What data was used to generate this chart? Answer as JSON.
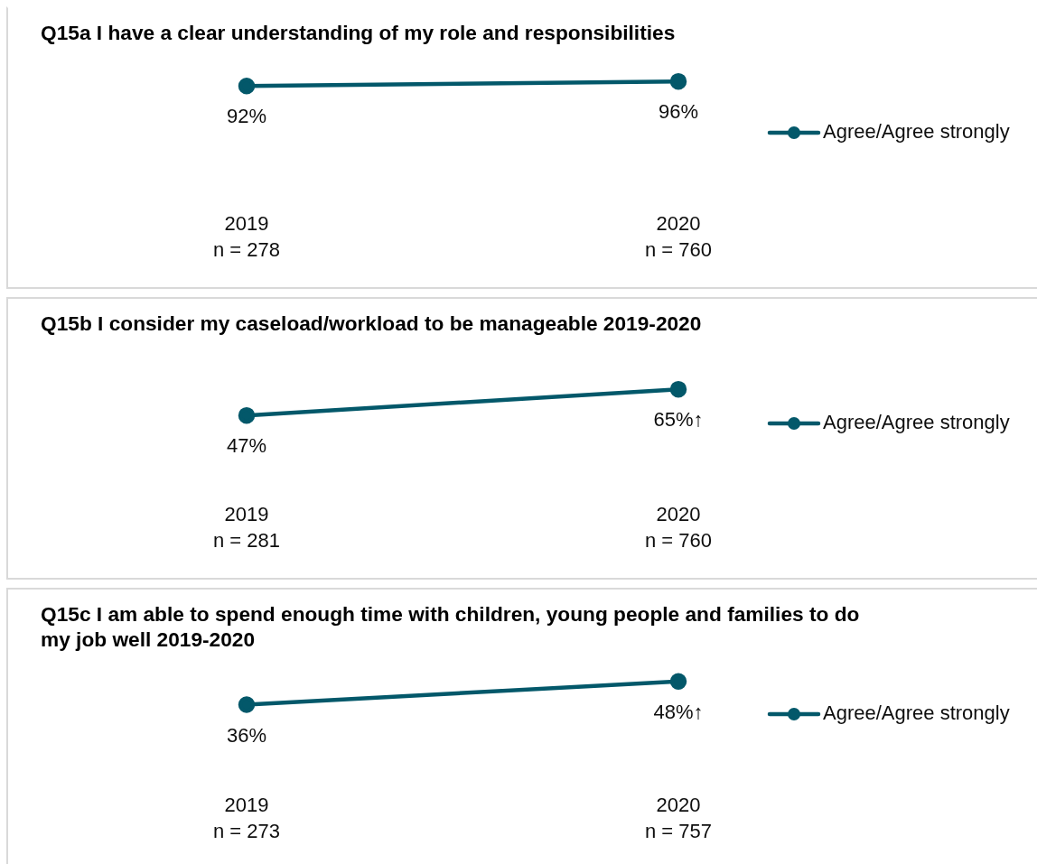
{
  "chart_data": [
    {
      "type": "line",
      "title": "Q15a I have a clear understanding of my role and responsibilities",
      "categories": [
        "2019\nn = 278",
        "2020\nn = 760"
      ],
      "series": [
        {
          "name": "Agree/Agree strongly",
          "color": "#03586a",
          "values": [
            92,
            96
          ],
          "value_labels": [
            "92%",
            "96%"
          ]
        }
      ],
      "legend": "right",
      "marker": "circle",
      "tick_labels": "x"
    },
    {
      "type": "line",
      "title": "Q15b I consider my caseload/workload to be manageable 2019-2020",
      "categories": [
        "2019\nn = 281",
        "2020\nn = 760"
      ],
      "series": [
        {
          "name": "Agree/Agree strongly",
          "color": "#03586a",
          "values": [
            47,
            65
          ],
          "value_labels": [
            "47%",
            "65%↑"
          ]
        }
      ],
      "legend": "right",
      "marker": "circle",
      "tick_labels": "x"
    },
    {
      "type": "line",
      "title": "Q15c I am able to spend enough time with children, young people and families to do my job well 2019-2020",
      "categories": [
        "2019\nn = 273",
        "2020\nn = 757"
      ],
      "series": [
        {
          "name": "Agree/Agree strongly",
          "color": "#03586a",
          "values": [
            36,
            48
          ],
          "value_labels": [
            "36%",
            "48%↑"
          ]
        }
      ],
      "legend": "right",
      "marker": "circle",
      "tick_labels": "x"
    }
  ]
}
